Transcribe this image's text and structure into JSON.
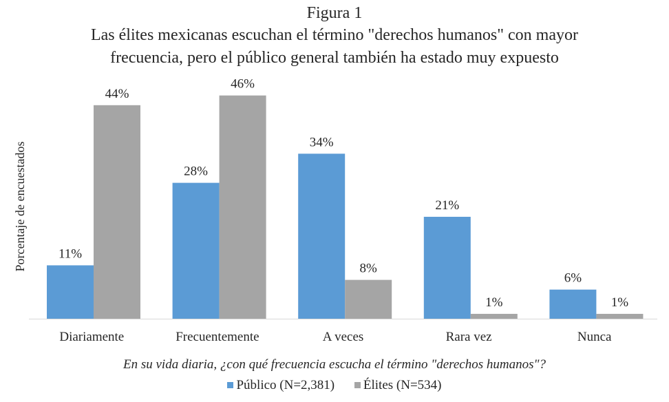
{
  "figure_label": "Figura 1",
  "title_lines": [
    "Las élites mexicanas escuchan el término \"derechos humanos\" con mayor",
    "frecuencia, pero el público general también ha estado muy expuesto"
  ],
  "colors": {
    "publico": "#5b9bd5",
    "elites": "#a5a5a5",
    "axis": "#d9d9d9"
  },
  "chart_data": {
    "type": "bar",
    "title": "Las élites mexicanas escuchan el término \"derechos humanos\" con mayor frecuencia, pero el público general también ha estado muy expuesto",
    "categories": [
      "Diariamente",
      "Frecuentemente",
      "A veces",
      "Rara vez",
      "Nunca"
    ],
    "series": [
      {
        "name": "Público (N=2,381)",
        "values": [
          11,
          28,
          34,
          21,
          6
        ],
        "labels": [
          "11%",
          "28%",
          "34%",
          "21%",
          "6%"
        ]
      },
      {
        "name": "Élites (N=534)",
        "values": [
          44,
          46,
          8,
          1,
          1
        ],
        "labels": [
          "44%",
          "46%",
          "8%",
          "1%",
          "1%"
        ]
      }
    ],
    "xlabel": "En su vida diaria, ¿con qué frecuencia escucha el término \"derechos humanos\"?",
    "ylabel": "Porcentaje de encuestados",
    "ylim": [
      0,
      50
    ],
    "grid": false,
    "legend": "bottom"
  }
}
